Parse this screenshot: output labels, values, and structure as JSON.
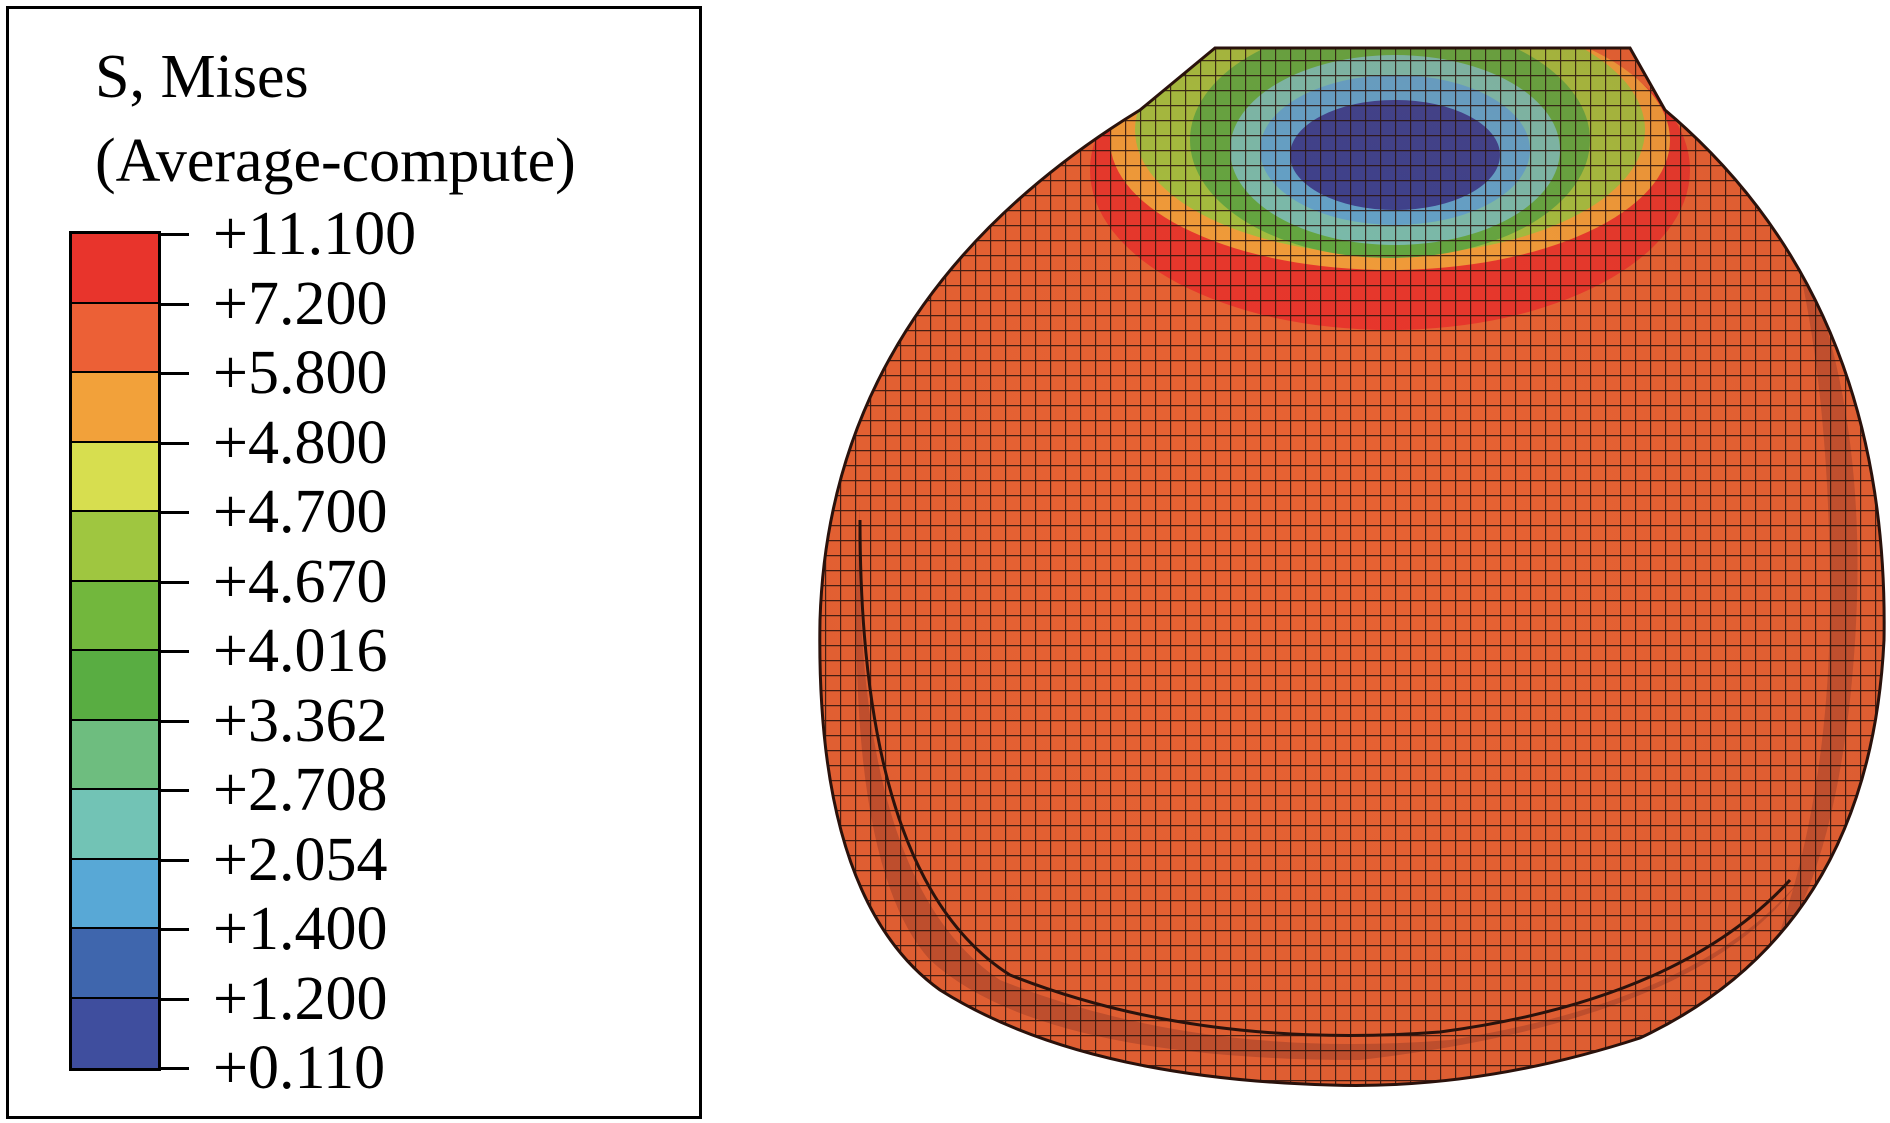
{
  "legend": {
    "title_line1": "S, Mises",
    "title_line2": "(Average-compute)",
    "levels": [
      "+11.100",
      "+7.200",
      "+5.800",
      "+4.800",
      "+4.700",
      "+4.670",
      "+4.016",
      "+3.362",
      "+2.708",
      "+2.054",
      "+1.400",
      "+1.200",
      "+0.110"
    ],
    "band_colors": [
      "#e8342c",
      "#ec6036",
      "#f2a13a",
      "#d7de4f",
      "#9fc640",
      "#72b73d",
      "#59ad42",
      "#6ebd7f",
      "#72c3b5",
      "#58a8d6",
      "#3f66ad",
      "#3f4e9e"
    ]
  },
  "contour": {
    "base_color": "#e76233",
    "shadow_color": "#b1482c",
    "cap_colors": [
      "#e8342c",
      "#f2a13a",
      "#9fc640",
      "#59ad42",
      "#72c3b5",
      "#58a8d6",
      "#2f3f95"
    ],
    "mesh_line_color": "#2a120c"
  }
}
